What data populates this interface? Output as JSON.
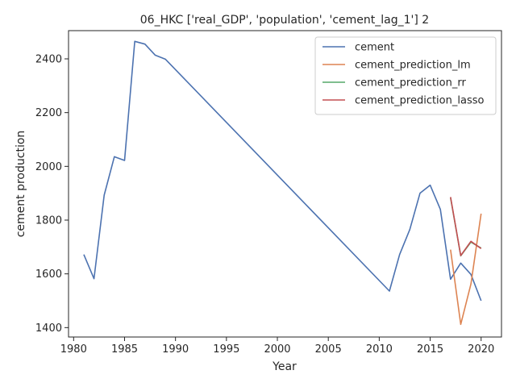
{
  "chart_data": {
    "type": "line",
    "title": "06_HKC ['real_GDP', 'population', 'cement_lag_1'] 2",
    "xlabel": "Year",
    "ylabel": "cement production",
    "xlim": [
      1979.5,
      2022
    ],
    "ylim": [
      1365,
      2505
    ],
    "xticks": [
      1980,
      1985,
      1990,
      1995,
      2000,
      2005,
      2010,
      2015,
      2020
    ],
    "yticks": [
      1400,
      1600,
      1800,
      2000,
      2200,
      2400
    ],
    "grid": false,
    "legend_position": "top-right",
    "series": [
      {
        "name": "cement",
        "color": "#4c72b0",
        "points": [
          [
            1981,
            1672
          ],
          [
            1982,
            1582
          ],
          [
            1983,
            1893
          ],
          [
            1984,
            2036
          ],
          [
            1985,
            2022
          ],
          [
            1986,
            2465
          ],
          [
            1987,
            2455
          ],
          [
            1988,
            2414
          ],
          [
            1989,
            2399
          ],
          [
            2011,
            1536
          ],
          [
            2012,
            1672
          ],
          [
            2013,
            1765
          ],
          [
            2014,
            1900
          ],
          [
            2015,
            1930
          ],
          [
            2016,
            1840
          ],
          [
            2017,
            1580
          ],
          [
            2018,
            1640
          ],
          [
            2019,
            1598
          ],
          [
            2020,
            1500
          ]
        ]
      },
      {
        "name": "cement_prediction_lm",
        "color": "#dd8452",
        "points": [
          [
            2017,
            1690
          ],
          [
            2018,
            1412
          ],
          [
            2019,
            1562
          ],
          [
            2020,
            1824
          ]
        ]
      },
      {
        "name": "cement_prediction_rr",
        "color": "#55a868",
        "points": [
          [
            2017,
            1883
          ],
          [
            2018,
            1667
          ],
          [
            2019,
            1718
          ],
          [
            2020,
            1696
          ]
        ]
      },
      {
        "name": "cement_prediction_lasso",
        "color": "#c44e52",
        "points": [
          [
            2017,
            1886
          ],
          [
            2018,
            1668
          ],
          [
            2019,
            1721
          ],
          [
            2020,
            1694
          ]
        ]
      }
    ]
  }
}
